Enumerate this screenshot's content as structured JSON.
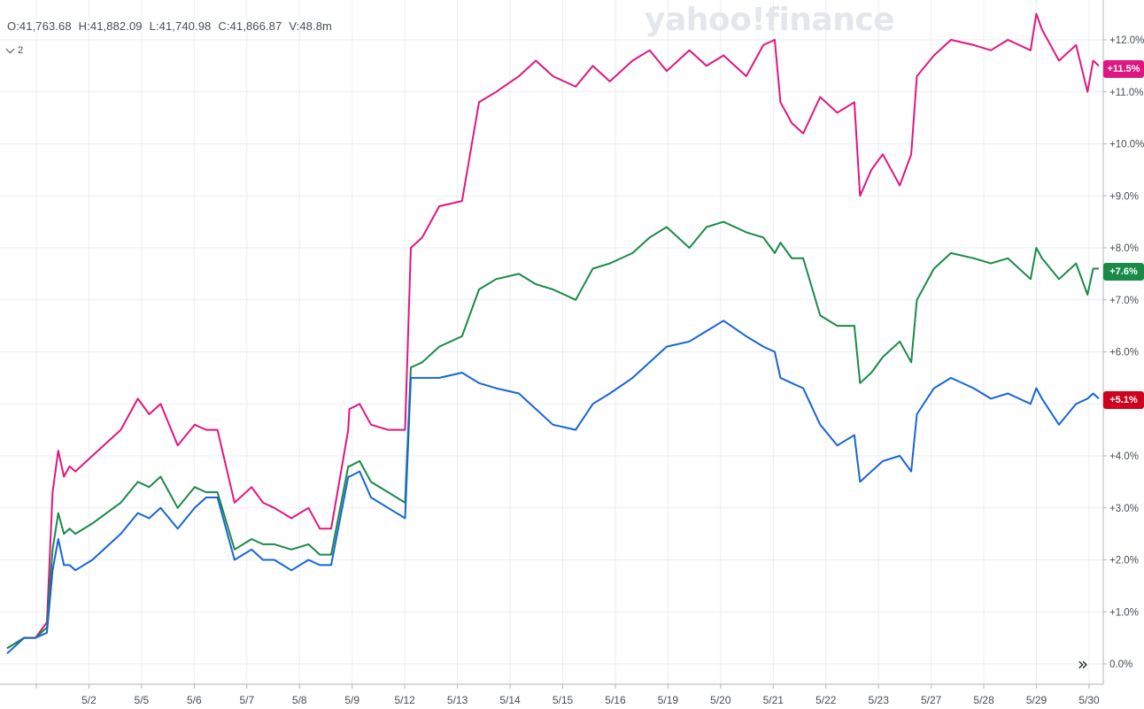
{
  "ohlc": {
    "open": "O:41,763.68",
    "high": "H:41,882.09",
    "low": "L:41,740.98",
    "close": "C:41,866.87",
    "volume": "V:48.8m"
  },
  "series_count_label": "2",
  "watermark": "yahoo!finance",
  "forward_button_icon": "double-chevron-right-icon",
  "badges": {
    "pink": {
      "label": "+11.5%",
      "color": "#e01681"
    },
    "green": {
      "label": "+7.6%",
      "color": "#1a8a47"
    },
    "red": {
      "label": "+5.1%",
      "color": "#d2001f"
    }
  },
  "chart_data": {
    "type": "line",
    "y_unit": "%",
    "ylim": [
      -0.3,
      12.8
    ],
    "y_ticks": [
      "+12.0%",
      "+11.0%",
      "+10.0%",
      "+9.0%",
      "+8.0%",
      "+7.0%",
      "+6.0%",
      "+5.0%",
      "+4.0%",
      "+3.0%",
      "+2.0%",
      "+1.0%",
      "0.0%"
    ],
    "y_tick_values": [
      12,
      11,
      10,
      9,
      8,
      7,
      6,
      5,
      4,
      3,
      2,
      1,
      0
    ],
    "x_ticks": [
      "5/2",
      "5/5",
      "5/6",
      "5/7",
      "5/8",
      "5/9",
      "5/12",
      "5/13",
      "5/14",
      "5/15",
      "5/16",
      "5/19",
      "5/20",
      "5/21",
      "5/22",
      "5/23",
      "5/27",
      "5/28",
      "5/29",
      "5/30"
    ],
    "grid": true,
    "x": [
      0,
      0.3,
      0.5,
      0.7,
      0.8,
      0.9,
      1.0,
      1.1,
      1.2,
      1.5,
      2.0,
      2.3,
      2.5,
      2.7,
      3.0,
      3.3,
      3.5,
      3.7,
      4.0,
      4.3,
      4.5,
      4.7,
      5.0,
      5.3,
      5.5,
      5.7,
      6.0,
      6.02,
      6.2,
      6.4,
      6.7,
      7.0,
      7.1,
      7.3,
      7.6,
      8.0,
      8.3,
      8.6,
      9.0,
      9.3,
      9.6,
      10.0,
      10.3,
      10.6,
      11.0,
      11.3,
      11.6,
      12.0,
      12.3,
      12.6,
      13.0,
      13.3,
      13.5,
      13.6,
      13.8,
      14.0,
      14.3,
      14.6,
      14.9,
      15.0,
      15.2,
      15.4,
      15.7,
      15.9,
      16.0,
      16.3,
      16.6,
      17.0,
      17.3,
      17.6,
      18.0,
      18.1,
      18.2,
      18.5,
      18.8,
      19.0,
      19.1,
      19.2
    ],
    "series": [
      {
        "color": "#e01681",
        "values": [
          0.3,
          0.5,
          0.5,
          0.8,
          3.3,
          4.1,
          3.6,
          3.8,
          3.7,
          4.0,
          4.5,
          5.1,
          4.8,
          5.0,
          4.2,
          4.6,
          4.5,
          4.5,
          3.1,
          3.4,
          3.1,
          3.0,
          2.8,
          3.0,
          2.6,
          2.6,
          4.5,
          4.9,
          5.0,
          4.6,
          4.5,
          4.5,
          8.0,
          8.2,
          8.8,
          8.9,
          10.8,
          11.0,
          11.3,
          11.6,
          11.3,
          11.1,
          11.5,
          11.2,
          11.6,
          11.8,
          11.4,
          11.8,
          11.5,
          11.7,
          11.3,
          11.9,
          12.0,
          10.8,
          10.4,
          10.2,
          10.9,
          10.6,
          10.8,
          9.0,
          9.5,
          9.8,
          9.2,
          9.8,
          11.3,
          11.7,
          12.0,
          11.9,
          11.8,
          12.0,
          11.8,
          12.5,
          12.2,
          11.6,
          11.9,
          11.0,
          11.6,
          11.5
        ]
      },
      {
        "color": "#1a8a47",
        "values": [
          0.3,
          0.5,
          0.5,
          0.7,
          2.2,
          2.9,
          2.5,
          2.6,
          2.5,
          2.7,
          3.1,
          3.5,
          3.4,
          3.6,
          3.0,
          3.4,
          3.3,
          3.3,
          2.2,
          2.4,
          2.3,
          2.3,
          2.2,
          2.3,
          2.1,
          2.1,
          3.8,
          3.8,
          3.9,
          3.5,
          3.3,
          3.1,
          5.7,
          5.8,
          6.1,
          6.3,
          7.2,
          7.4,
          7.5,
          7.3,
          7.2,
          7.0,
          7.6,
          7.7,
          7.9,
          8.2,
          8.4,
          8.0,
          8.4,
          8.5,
          8.3,
          8.2,
          7.9,
          8.1,
          7.8,
          7.8,
          6.7,
          6.5,
          6.5,
          5.4,
          5.6,
          5.9,
          6.2,
          5.8,
          7.0,
          7.6,
          7.9,
          7.8,
          7.7,
          7.8,
          7.4,
          8.0,
          7.8,
          7.4,
          7.7,
          7.1,
          7.6,
          7.6
        ]
      },
      {
        "color": "#1665d8",
        "values": [
          0.2,
          0.5,
          0.5,
          0.6,
          1.8,
          2.4,
          1.9,
          1.9,
          1.8,
          2.0,
          2.5,
          2.9,
          2.8,
          3.0,
          2.6,
          3.0,
          3.2,
          3.2,
          2.0,
          2.2,
          2.0,
          2.0,
          1.8,
          2.0,
          1.9,
          1.9,
          3.6,
          3.6,
          3.7,
          3.2,
          3.0,
          2.8,
          5.5,
          5.5,
          5.5,
          5.6,
          5.4,
          5.3,
          5.2,
          4.9,
          4.6,
          4.5,
          5.0,
          5.2,
          5.5,
          5.8,
          6.1,
          6.2,
          6.4,
          6.6,
          6.3,
          6.1,
          6.0,
          5.5,
          5.4,
          5.3,
          4.6,
          4.2,
          4.4,
          3.5,
          3.7,
          3.9,
          4.0,
          3.7,
          4.8,
          5.3,
          5.5,
          5.3,
          5.1,
          5.2,
          5.0,
          5.3,
          5.1,
          4.6,
          5.0,
          5.1,
          5.2,
          5.1
        ]
      }
    ]
  }
}
